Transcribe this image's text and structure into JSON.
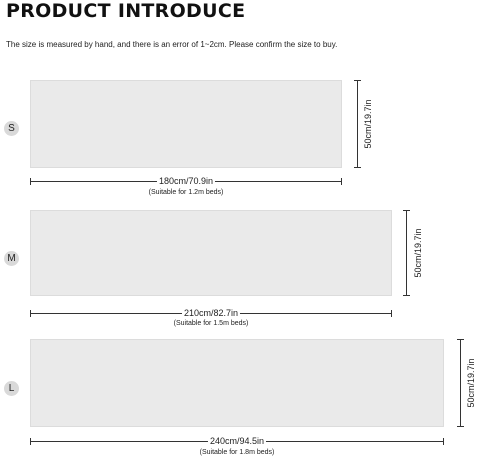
{
  "header": {
    "title": "PRODUCT INTRODUCE",
    "subtitle": "The size is measured by hand, and there is an error of 1~2cm. Please confirm the size to buy."
  },
  "sizes": [
    {
      "label": "S",
      "width": "180cm/70.9in",
      "height": "50cm/19.7in",
      "note": "(Suitable for 1.2m beds)"
    },
    {
      "label": "M",
      "width": "210cm/82.7in",
      "height": "50cm/19.7in",
      "note": "(Suitable for 1.5m beds)"
    },
    {
      "label": "L",
      "width": "240cm/94.5in",
      "height": "50cm/19.7in",
      "note": "(Suitable for 1.8m beds)"
    }
  ],
  "colors": {
    "panel": "#eaeaea",
    "badge": "#d9d9d9",
    "text": "#111111"
  }
}
